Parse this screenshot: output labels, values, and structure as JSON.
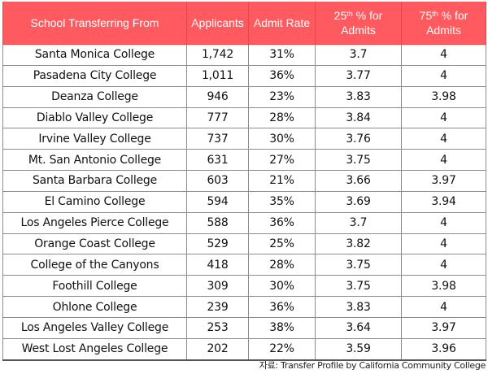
{
  "table": {
    "headers": {
      "school": "School Transferring From",
      "applicants": "Applicants",
      "admit_rate": "Admit Rate",
      "p25_num": "25",
      "p25_sup": "th",
      "p25_rest": " % for",
      "p25_line2": "Admits",
      "p75_num": "75",
      "p75_sup": "th",
      "p75_rest": " % for",
      "p75_line2": "Admits"
    },
    "rows": [
      {
        "school": "Santa Monica College",
        "applicants": "1,742",
        "admit_rate": "31%",
        "p25": "3.7",
        "p75": "4"
      },
      {
        "school": "Pasadena City College",
        "applicants": "1,011",
        "admit_rate": "36%",
        "p25": "3.77",
        "p75": "4"
      },
      {
        "school": "Deanza College",
        "applicants": "946",
        "admit_rate": "23%",
        "p25": "3.83",
        "p75": "3.98"
      },
      {
        "school": "Diablo Valley College",
        "applicants": "777",
        "admit_rate": "28%",
        "p25": "3.84",
        "p75": "4"
      },
      {
        "school": "Irvine Valley College",
        "applicants": "737",
        "admit_rate": "30%",
        "p25": "3.76",
        "p75": "4"
      },
      {
        "school": "Mt. San Antonio College",
        "applicants": "631",
        "admit_rate": "27%",
        "p25": "3.75",
        "p75": "4"
      },
      {
        "school": "Santa Barbara College",
        "applicants": "603",
        "admit_rate": "21%",
        "p25": "3.66",
        "p75": "3.97"
      },
      {
        "school": "El Camino College",
        "applicants": "594",
        "admit_rate": "35%",
        "p25": "3.69",
        "p75": "3.94"
      },
      {
        "school": "Los Angeles Pierce College",
        "applicants": "588",
        "admit_rate": "36%",
        "p25": "3.7",
        "p75": "4"
      },
      {
        "school": "Orange Coast College",
        "applicants": "529",
        "admit_rate": "25%",
        "p25": "3.82",
        "p75": "4"
      },
      {
        "school": "College of the Canyons",
        "applicants": "418",
        "admit_rate": "28%",
        "p25": "3.75",
        "p75": "4"
      },
      {
        "school": "Foothill College",
        "applicants": "309",
        "admit_rate": "30%",
        "p25": "3.75",
        "p75": "3.98"
      },
      {
        "school": "Ohlone College",
        "applicants": "239",
        "admit_rate": "36%",
        "p25": "3.83",
        "p75": "4"
      },
      {
        "school": "Los Angeles Valley College",
        "applicants": "253",
        "admit_rate": "38%",
        "p25": "3.64",
        "p75": "3.97"
      },
      {
        "school": "West Lost Angeles College",
        "applicants": "202",
        "admit_rate": "22%",
        "p25": "3.59",
        "p75": "3.96"
      }
    ]
  },
  "source": "자료: Transfer Profile by California Community College",
  "colors": {
    "header_bg": "#ff5a5f",
    "header_text": "#ffffff",
    "border": "#8c8c8c"
  }
}
